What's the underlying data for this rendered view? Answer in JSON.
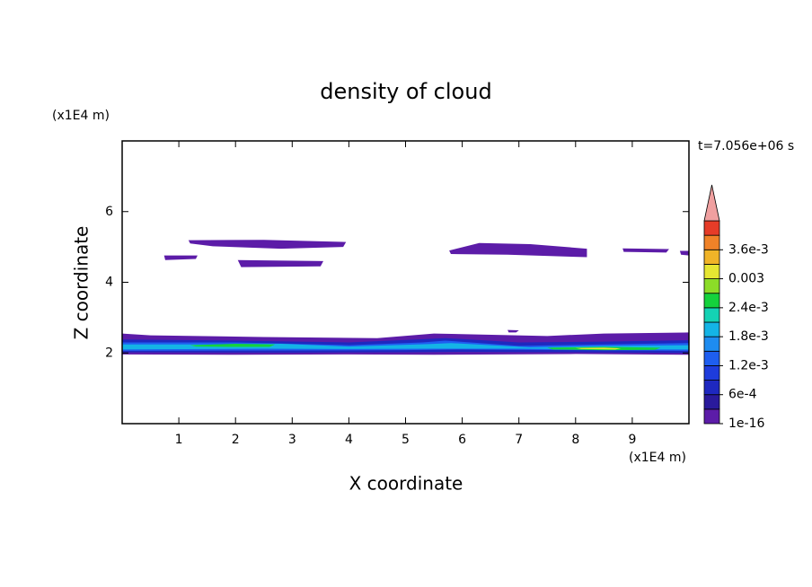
{
  "chart_data": {
    "type": "contour",
    "title": "density of cloud",
    "x_label": "X coordinate",
    "y_label": "Z coordinate",
    "x_unit": "(x1E4 m)",
    "y_unit": "(x1E4 m)",
    "time_label": "t=7.056e+06 s",
    "xlim": [
      0,
      10
    ],
    "ylim": [
      0,
      8
    ],
    "xticks": [
      1,
      2,
      3,
      4,
      5,
      6,
      7,
      8,
      9
    ],
    "yticks": [
      2,
      4,
      6
    ],
    "levels": [
      1e-16,
      0.0003,
      0.0006,
      0.0009,
      0.0012,
      0.0015,
      0.0018,
      0.0021,
      0.0024,
      0.0027,
      0.003,
      0.0033,
      0.0036,
      0.0039
    ],
    "colors": [
      "#5c1ca8",
      "#2a1a9c",
      "#1e28c0",
      "#1e3cdc",
      "#1e5ef0",
      "#1e8cf0",
      "#14b4e6",
      "#14d2b4",
      "#14d23c",
      "#8cdc28",
      "#e6e632",
      "#f0b428",
      "#f08228",
      "#e63c28"
    ],
    "extend_color": "#f0a0a0",
    "colorbar_ticks": [
      {
        "value": 1e-16,
        "label": "1e-16"
      },
      {
        "value": 0.0006,
        "label": "6e-4"
      },
      {
        "value": 0.0012,
        "label": "1.2e-3"
      },
      {
        "value": 0.0018,
        "label": "1.8e-3"
      },
      {
        "value": 0.0024,
        "label": "2.4e-3"
      },
      0.003,
      {
        "value": 0.0036,
        "label": "3.6e-3"
      }
    ],
    "fields": [
      {
        "level": 1e-16,
        "x": [
          1.17,
          2.5,
          3.95,
          3.9,
          2.8,
          1.6,
          1.2
        ],
        "y": [
          5.19,
          5.2,
          5.14,
          5.0,
          4.95,
          5.02,
          5.1
        ]
      },
      {
        "level": 1e-16,
        "x": [
          2.04,
          3.55,
          3.5,
          2.1
        ],
        "y": [
          4.63,
          4.6,
          4.45,
          4.43
        ]
      },
      {
        "level": 1e-16,
        "x": [
          0.74,
          1.33,
          1.3,
          0.76
        ],
        "y": [
          4.76,
          4.76,
          4.66,
          4.63
        ]
      },
      {
        "level": 1e-16,
        "x": [
          5.77,
          6.3,
          7.2,
          8.2,
          8.2,
          6.8,
          5.8
        ],
        "y": [
          4.9,
          5.11,
          5.08,
          4.95,
          4.71,
          4.78,
          4.8
        ]
      },
      {
        "level": 1e-16,
        "x": [
          8.83,
          9.65,
          9.6,
          8.85
        ],
        "y": [
          4.96,
          4.94,
          4.84,
          4.86
        ]
      },
      {
        "level": 1e-16,
        "x": [
          9.84,
          10,
          10,
          9.86
        ],
        "y": [
          4.89,
          4.89,
          4.76,
          4.78
        ]
      },
      {
        "level": 1e-16,
        "x": [
          6.8,
          7.0,
          6.95,
          6.82
        ],
        "y": [
          2.65,
          2.64,
          2.58,
          2.58
        ]
      },
      {
        "level": 1e-16,
        "x": [
          0,
          0.5,
          2.5,
          4.5,
          5.5,
          7.5,
          8.5,
          10,
          10,
          8,
          5.5,
          4,
          2,
          0
        ],
        "y": [
          2.55,
          2.5,
          2.45,
          2.42,
          2.55,
          2.48,
          2.55,
          2.58,
          1.95,
          1.97,
          1.95,
          1.96,
          1.95,
          1.96
        ]
      },
      {
        "level": 0.0006,
        "x": [
          0,
          2,
          4,
          5.2,
          5.7,
          7,
          8.5,
          10,
          10,
          8,
          6,
          5,
          3,
          0
        ],
        "y": [
          2.38,
          2.35,
          2.3,
          2.38,
          2.42,
          2.3,
          2.32,
          2.36,
          2.0,
          2.02,
          2.03,
          2.02,
          2.01,
          2.02
        ]
      },
      {
        "level": 0.0012,
        "x": [
          0,
          2,
          4,
          5.3,
          5.7,
          7,
          8.5,
          10,
          10,
          8,
          6,
          5,
          3,
          0
        ],
        "y": [
          2.3,
          2.3,
          2.22,
          2.3,
          2.35,
          2.2,
          2.24,
          2.28,
          2.06,
          2.08,
          2.1,
          2.08,
          2.07,
          2.06
        ]
      },
      {
        "level": 0.0018,
        "x": [
          0,
          1.5,
          2.8,
          4,
          5.4,
          5.8,
          7.2,
          8.5,
          10,
          10,
          8.5,
          7,
          5.5,
          4,
          2.5,
          0
        ],
        "y": [
          2.24,
          2.24,
          2.26,
          2.18,
          2.25,
          2.28,
          2.16,
          2.2,
          2.22,
          2.1,
          2.1,
          2.12,
          2.12,
          2.11,
          2.12,
          2.1
        ]
      },
      {
        "level": 0.0024,
        "x": [
          1.2,
          2,
          2.7,
          2.6,
          1.9,
          1.3
        ],
        "y": [
          2.22,
          2.26,
          2.24,
          2.17,
          2.17,
          2.18
        ]
      },
      {
        "level": 0.0024,
        "x": [
          7.5,
          8.5,
          9.5,
          9.4,
          8.5,
          7.6
        ],
        "y": [
          2.15,
          2.17,
          2.15,
          2.09,
          2.08,
          2.1
        ]
      },
      {
        "level": 0.003,
        "x": [
          8.0,
          8.5,
          8.8,
          8.7,
          8.1
        ],
        "y": [
          2.14,
          2.15,
          2.13,
          2.1,
          2.11
        ]
      }
    ]
  }
}
